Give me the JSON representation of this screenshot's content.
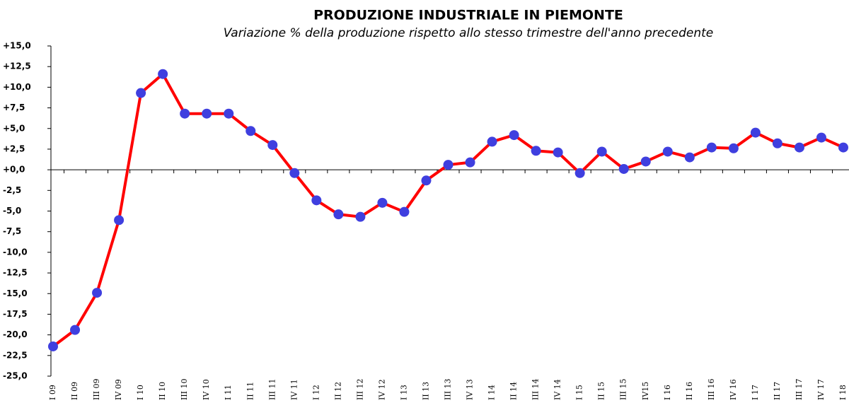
{
  "chart_data": {
    "type": "line",
    "title": "PRODUZIONE INDUSTRIALE IN PIEMONTE",
    "subtitle": "Variazione % della produzione rispetto allo stesso trimestre dell'anno precedente",
    "categories": [
      "I 09",
      "II 09",
      "III 09",
      "IV 09",
      "I 10",
      "II 10",
      "III 10",
      "IV 10",
      "I 11",
      "II 11",
      "III 11",
      "IV 11",
      "I 12",
      "II 12",
      "III 12",
      "IV 12",
      "I 13",
      "II 13",
      "III 13",
      "IV 13",
      "I 14",
      "II 14",
      "III 14",
      "IV 14",
      "I 15",
      "II 15",
      "III 15",
      "IV15",
      "I 16",
      "II 16",
      "III 16",
      "IV 16",
      "I 17",
      "II 17",
      "III 17",
      "IV 17",
      "I 18"
    ],
    "series": [
      {
        "color": "#ff0000",
        "marker_color": "#3f3fdf",
        "values": [
          -21.4,
          -19.4,
          -14.9,
          -6.1,
          9.3,
          11.6,
          6.8,
          6.8,
          6.8,
          4.7,
          3.0,
          -0.4,
          -3.7,
          -5.4,
          -5.7,
          -4.0,
          -5.1,
          -1.3,
          0.6,
          0.9,
          3.4,
          4.2,
          2.3,
          2.1,
          -0.4,
          2.2,
          0.1,
          1.0,
          2.2,
          1.5,
          2.7,
          2.6,
          4.5,
          3.2,
          2.7,
          3.9,
          2.7
        ]
      }
    ],
    "ylim": [
      -25,
      15
    ],
    "yticks": [
      {
        "value": -25,
        "label": "-25,0"
      },
      {
        "value": -22.5,
        "label": "-22,5"
      },
      {
        "value": -20,
        "label": "-20,0"
      },
      {
        "value": -17.5,
        "label": "-17,5"
      },
      {
        "value": -15,
        "label": "-15,0"
      },
      {
        "value": -12.5,
        "label": "-12,5"
      },
      {
        "value": -10,
        "label": "-10,0"
      },
      {
        "value": -7.5,
        "label": "-7,5"
      },
      {
        "value": -5,
        "label": "-5,0"
      },
      {
        "value": -2.5,
        "label": "-2,5"
      },
      {
        "value": 0,
        "label": "+0,0"
      },
      {
        "value": 2.5,
        "label": "+2,5"
      },
      {
        "value": 5,
        "label": "+5,0"
      },
      {
        "value": 7.5,
        "label": "+7,5"
      },
      {
        "value": 10,
        "label": "+10,0"
      },
      {
        "value": 12.5,
        "label": "+12,5"
      },
      {
        "value": 15,
        "label": "+15,0"
      }
    ],
    "grid": false
  }
}
